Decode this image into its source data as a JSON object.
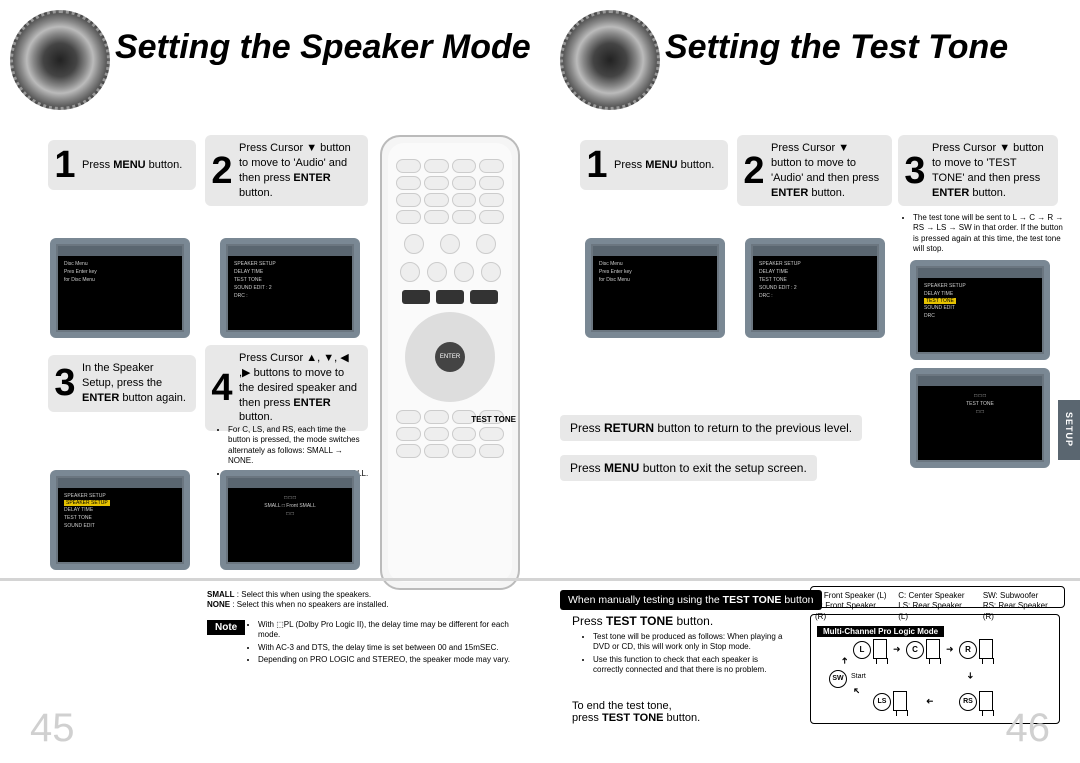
{
  "left": {
    "title": "Setting the Speaker Mode",
    "page_num": "45",
    "step1": "Press <b>MENU</b> button.",
    "step2": "Press Cursor ▼ button to move to 'Audio' and then press <b>ENTER</b> button.",
    "step3": "In the Speaker Setup, press the <b>ENTER</b> button again.",
    "step4": "Press Cursor ▲, ▼, ◀ ,▶ buttons to move to the desired speaker and then press <b>ENTER</b> button.",
    "step4_bullets": [
      "For C, LS, and RS, each time the button is pressed, the mode switches alternately as follows: SMALL → NONE.",
      "For L and R, the mode is set to SMALL."
    ],
    "small_none": "<b>SMALL</b> : Select this when using the speakers.<br><b>NONE</b> : Select this when no speakers are installed.",
    "note_label": "Note",
    "note_bullets": [
      "With ⬚PL (Dolby Pro Logic II), the delay time may be different for each mode.",
      "With AC-3 and DTS, the delay time is set between 00 and 15mSEC.",
      "Depending on PRO LOGIC and STEREO, the speaker mode may vary."
    ],
    "remote_enter": "ENTER",
    "testtone_label": "TEST TONE"
  },
  "right": {
    "title": "Setting the Test Tone",
    "page_num": "46",
    "step1": "Press <b>MENU</b> button.",
    "step2": "Press Cursor ▼ button to move to 'Audio' and then press <b>ENTER</b> button.",
    "step3": "Press Cursor ▼ button to move to 'TEST TONE' and then press <b>ENTER</b> button.",
    "step3_bullets": [
      "The test tone will be sent to L → C → R → RS → LS → SW in that order. If the button is pressed again at this time, the test tone will stop."
    ],
    "return_bar": "Press <b>RETURN</b> button to return to the previous level.",
    "menu_bar": "Press <b>MENU</b> button to exit the setup screen.",
    "setup_tab": "SETUP",
    "black_bar": "When manually testing using the <b>TEST TONE</b> button",
    "test_instruction": "Press <b>TEST TONE</b> button.",
    "test_bullets": [
      "Test tone will be produced as follows: When playing a DVD or CD, this will work only in Stop mode.",
      "Use this function to check that each speaker is correctly connected and that there is no problem."
    ],
    "end_test": "To end the test tone,<br>press <b>TEST TONE</b> button.",
    "legend": {
      "l": "L: Front Speaker (L)",
      "r": "R: Front Speaker (R)",
      "c": "C: Center Speaker",
      "ls": "LS: Rear Speaker (L)",
      "sw": "SW: Subwoofer",
      "rs": "RS: Rear Speaker (R)"
    },
    "diagram_title": "Multi-Channel Pro Logic Mode",
    "diagram_start": "Start",
    "spk_l": "L",
    "spk_c": "C",
    "spk_r": "R",
    "spk_sw": "SW",
    "spk_ls": "LS",
    "spk_rs": "RS"
  }
}
